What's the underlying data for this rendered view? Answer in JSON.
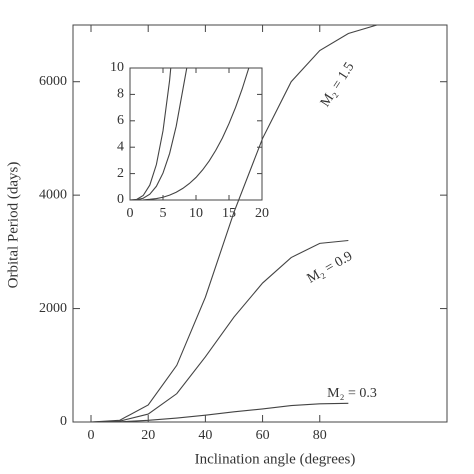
{
  "chart_data": [
    {
      "type": "line",
      "xlabel": "Inclination angle (degrees)",
      "ylabel": "Orbital Period (days)",
      "x": [
        0,
        10,
        20,
        30,
        40,
        50,
        60,
        70,
        80,
        90,
        100
      ],
      "series": [
        {
          "name": "M₂ = 1.5",
          "color": "#444444",
          "values": [
            0,
            30,
            300,
            1000,
            2200,
            3700,
            5000,
            6000,
            6550,
            6850,
            7000
          ]
        },
        {
          "name": "M₂ = 0.9",
          "color": "#444444",
          "values": [
            0,
            15,
            140,
            500,
            1150,
            1850,
            2450,
            2900,
            3150,
            3200,
            null
          ]
        },
        {
          "name": "M₂ = 0.3",
          "color": "#444444",
          "values": [
            0,
            3,
            30,
            70,
            120,
            180,
            230,
            290,
            320,
            330,
            null
          ]
        }
      ],
      "xlim": [
        -6.3,
        124.5
      ],
      "ylim": [
        0,
        7000
      ],
      "xticks": [
        0,
        20,
        40,
        60,
        80
      ],
      "yticks": [
        0,
        2000,
        4000,
        6000
      ]
    },
    {
      "type": "line",
      "x": [
        0,
        1,
        2,
        3,
        4,
        5,
        6,
        7,
        8,
        9,
        10,
        11,
        12,
        13,
        14,
        15,
        16,
        17,
        18,
        19
      ],
      "series": [
        {
          "name": "M₂ = 1.5",
          "color": "#444444",
          "values": [
            0,
            0.04,
            0.34,
            1.13,
            2.69,
            5.24,
            9.06,
            14.4,
            null,
            null,
            null,
            null,
            null,
            null,
            null,
            null,
            null,
            null,
            null,
            null
          ]
        },
        {
          "name": "M₂ = 0.9",
          "color": "#444444",
          "values": [
            0,
            0.02,
            0.13,
            0.44,
            1.04,
            2.04,
            3.52,
            5.59,
            8.34,
            11.1,
            null,
            null,
            null,
            null,
            null,
            null,
            null,
            null,
            null,
            null
          ]
        },
        {
          "name": "M₂ = 0.3",
          "color": "#444444",
          "values": [
            0,
            0,
            0.01,
            0.05,
            0.11,
            0.21,
            0.37,
            0.59,
            0.88,
            1.25,
            1.71,
            2.28,
            2.96,
            3.77,
            4.7,
            5.79,
            7.02,
            8.42,
            10,
            11.8
          ]
        }
      ],
      "xlim": [
        0,
        20
      ],
      "ylim": [
        0,
        10
      ],
      "xticks": [
        0,
        5,
        10,
        15,
        20
      ],
      "yticks": [
        0,
        2,
        4,
        6,
        8,
        10
      ]
    }
  ]
}
